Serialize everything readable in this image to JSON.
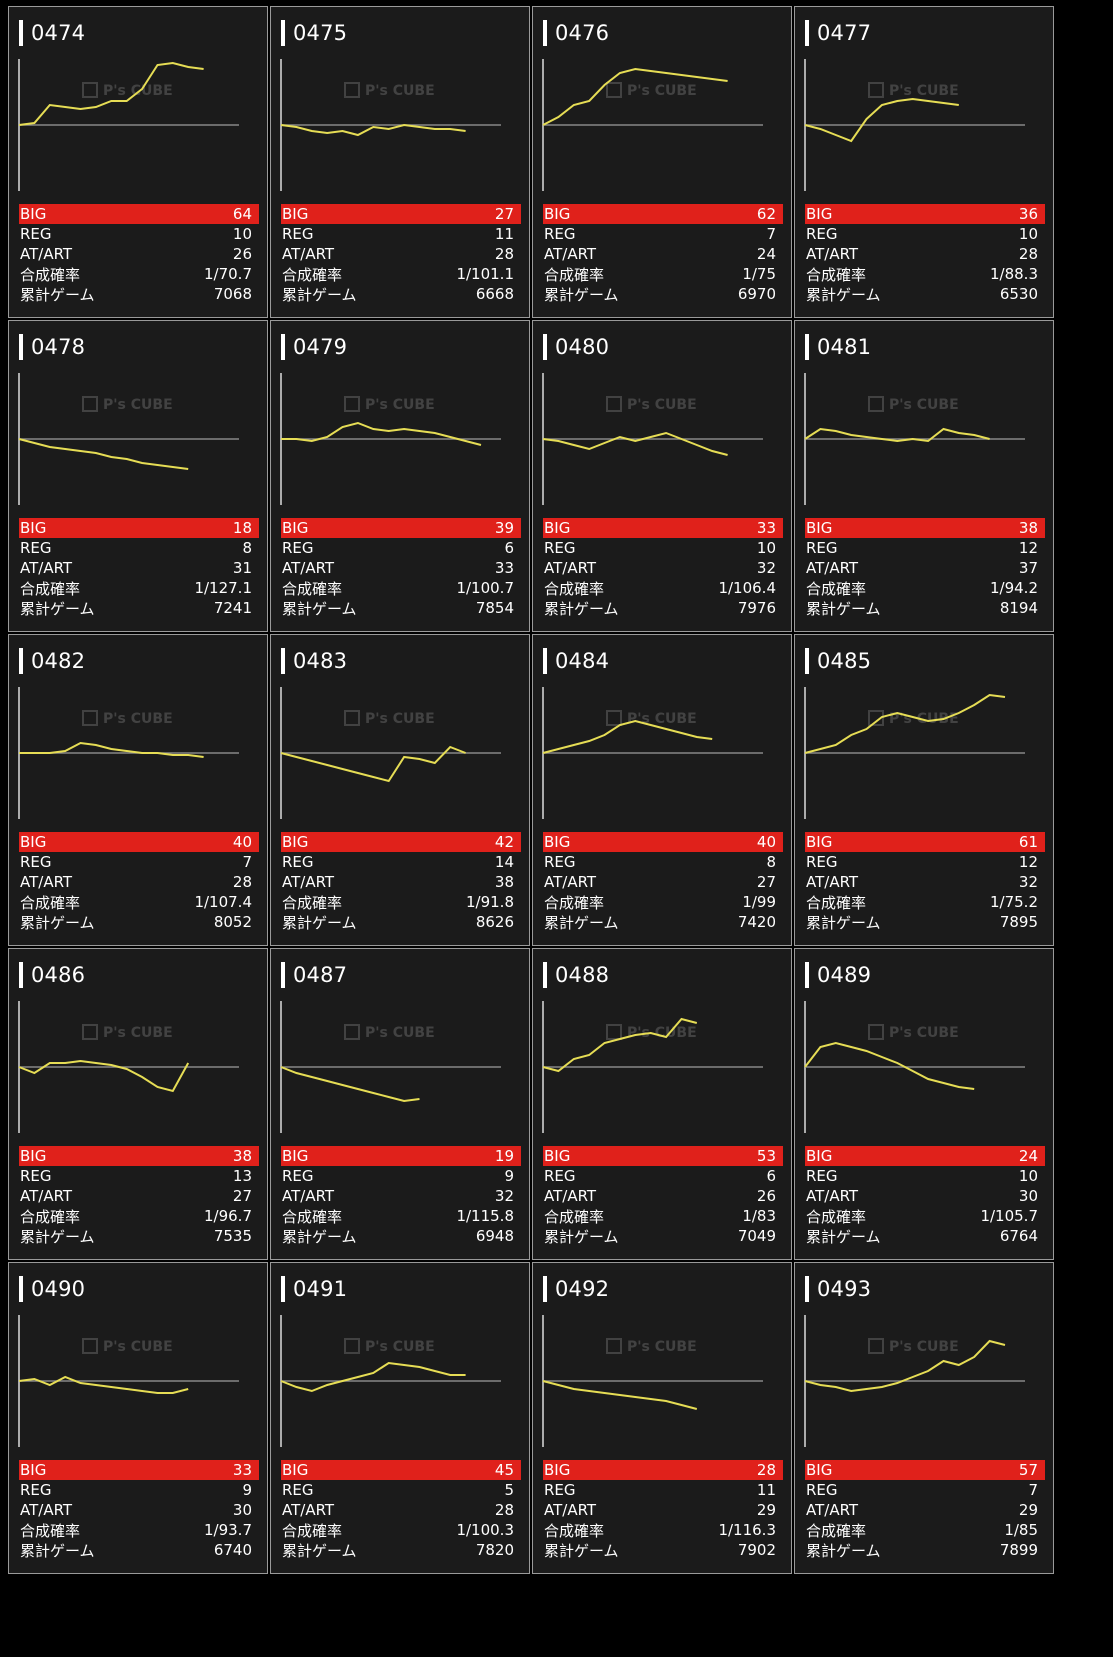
{
  "watermark": {
    "brand": "P's CUBE"
  },
  "labels": {
    "big": "BIG",
    "reg": "REG",
    "at": "AT/ART",
    "prob": "合成確率",
    "games": "累計ゲーム"
  },
  "colors": {
    "big_bg": "#e0211b",
    "line": "#e6dd55",
    "card_bg": "#1b1b1b"
  },
  "machines": [
    {
      "no": "0474",
      "big": "64",
      "reg": "10",
      "at": "26",
      "prob": "1/70.7",
      "games": "7068",
      "trend": [
        0,
        1,
        10,
        9,
        8,
        9,
        12,
        12,
        18,
        30,
        31,
        29,
        28
      ]
    },
    {
      "no": "0475",
      "big": "27",
      "reg": "11",
      "at": "28",
      "prob": "1/101.1",
      "games": "6668",
      "trend": [
        0,
        -1,
        -3,
        -4,
        -3,
        -5,
        -1,
        -2,
        0,
        -1,
        -2,
        -2,
        -3
      ]
    },
    {
      "no": "0476",
      "big": "62",
      "reg": "7",
      "at": "24",
      "prob": "1/75",
      "games": "6970",
      "trend": [
        0,
        4,
        10,
        12,
        20,
        26,
        28,
        27,
        26,
        25,
        24,
        23,
        22
      ]
    },
    {
      "no": "0477",
      "big": "36",
      "reg": "10",
      "at": "28",
      "prob": "1/88.3",
      "games": "6530",
      "trend": [
        0,
        -2,
        -5,
        -8,
        3,
        10,
        12,
        13,
        12,
        11,
        10
      ]
    },
    {
      "no": "0478",
      "big": "18",
      "reg": "8",
      "at": "31",
      "prob": "1/127.1",
      "games": "7241",
      "trend": [
        0,
        -2,
        -4,
        -5,
        -6,
        -7,
        -9,
        -10,
        -12,
        -13,
        -14,
        -15
      ]
    },
    {
      "no": "0479",
      "big": "39",
      "reg": "6",
      "at": "33",
      "prob": "1/100.7",
      "games": "7854",
      "trend": [
        0,
        0,
        -1,
        1,
        6,
        8,
        5,
        4,
        5,
        4,
        3,
        1,
        -1,
        -3
      ]
    },
    {
      "no": "0480",
      "big": "33",
      "reg": "10",
      "at": "32",
      "prob": "1/106.4",
      "games": "7976",
      "trend": [
        0,
        -1,
        -3,
        -5,
        -2,
        1,
        -1,
        1,
        3,
        0,
        -3,
        -6,
        -8
      ]
    },
    {
      "no": "0481",
      "big": "38",
      "reg": "12",
      "at": "37",
      "prob": "1/94.2",
      "games": "8194",
      "trend": [
        0,
        5,
        4,
        2,
        1,
        0,
        -1,
        0,
        -1,
        5,
        3,
        2,
        0
      ]
    },
    {
      "no": "0482",
      "big": "40",
      "reg": "7",
      "at": "28",
      "prob": "1/107.4",
      "games": "8052",
      "trend": [
        0,
        0,
        0,
        1,
        5,
        4,
        2,
        1,
        0,
        0,
        -1,
        -1,
        -2
      ]
    },
    {
      "no": "0483",
      "big": "42",
      "reg": "14",
      "at": "38",
      "prob": "1/91.8",
      "games": "8626",
      "trend": [
        0,
        -2,
        -4,
        -6,
        -8,
        -10,
        -12,
        -14,
        -2,
        -3,
        -5,
        3,
        0
      ]
    },
    {
      "no": "0484",
      "big": "40",
      "reg": "8",
      "at": "27",
      "prob": "1/99",
      "games": "7420",
      "trend": [
        0,
        2,
        4,
        6,
        9,
        14,
        16,
        14,
        12,
        10,
        8,
        7
      ]
    },
    {
      "no": "0485",
      "big": "61",
      "reg": "12",
      "at": "32",
      "prob": "1/75.2",
      "games": "7895",
      "trend": [
        0,
        2,
        4,
        9,
        12,
        18,
        20,
        18,
        16,
        17,
        20,
        24,
        29,
        28
      ]
    },
    {
      "no": "0486",
      "big": "38",
      "reg": "13",
      "at": "27",
      "prob": "1/96.7",
      "games": "7535",
      "trend": [
        0,
        -3,
        2,
        2,
        3,
        2,
        1,
        -1,
        -5,
        -10,
        -12,
        2
      ]
    },
    {
      "no": "0487",
      "big": "19",
      "reg": "9",
      "at": "32",
      "prob": "1/115.8",
      "games": "6948",
      "trend": [
        0,
        -3,
        -5,
        -7,
        -9,
        -11,
        -13,
        -15,
        -17,
        -16
      ]
    },
    {
      "no": "0488",
      "big": "53",
      "reg": "6",
      "at": "26",
      "prob": "1/83",
      "games": "7049",
      "trend": [
        0,
        -2,
        4,
        6,
        12,
        14,
        16,
        17,
        15,
        24,
        22
      ]
    },
    {
      "no": "0489",
      "big": "24",
      "reg": "10",
      "at": "30",
      "prob": "1/105.7",
      "games": "6764",
      "trend": [
        0,
        10,
        12,
        10,
        8,
        5,
        2,
        -2,
        -6,
        -8,
        -10,
        -11
      ]
    },
    {
      "no": "0490",
      "big": "33",
      "reg": "9",
      "at": "30",
      "prob": "1/93.7",
      "games": "6740",
      "trend": [
        0,
        1,
        -2,
        2,
        -1,
        -2,
        -3,
        -4,
        -5,
        -6,
        -6,
        -4
      ]
    },
    {
      "no": "0491",
      "big": "45",
      "reg": "5",
      "at": "28",
      "prob": "1/100.3",
      "games": "7820",
      "trend": [
        0,
        -3,
        -5,
        -2,
        0,
        2,
        4,
        9,
        8,
        7,
        5,
        3,
        3
      ]
    },
    {
      "no": "0492",
      "big": "28",
      "reg": "11",
      "at": "29",
      "prob": "1/116.3",
      "games": "7902",
      "trend": [
        0,
        -2,
        -4,
        -5,
        -6,
        -7,
        -8,
        -9,
        -10,
        -12,
        -14
      ]
    },
    {
      "no": "0493",
      "big": "57",
      "reg": "7",
      "at": "29",
      "prob": "1/85",
      "games": "7899",
      "trend": [
        0,
        -2,
        -3,
        -5,
        -4,
        -3,
        -1,
        2,
        5,
        10,
        8,
        12,
        20,
        18
      ]
    }
  ]
}
